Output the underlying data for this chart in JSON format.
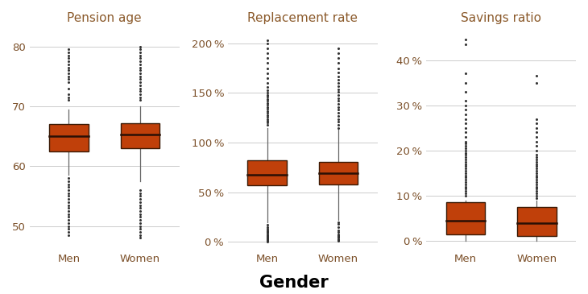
{
  "title": "Gender",
  "subplots": [
    {
      "title": "Pension age",
      "ylabel_ticks": [
        50,
        60,
        70,
        80
      ],
      "ylim": [
        46,
        83
      ],
      "categories": [
        "Men",
        "Women"
      ],
      "box_data": {
        "Men": {
          "q1": 62.5,
          "median": 65.0,
          "q3": 67.0,
          "whisker_low": 58.5,
          "whisker_high": 69.5,
          "flier_low": [
            48.5,
            49.0,
            49.5,
            50.0,
            50.5,
            51.0,
            51.5,
            52.0,
            52.5,
            53.0,
            53.5,
            54.0,
            54.5,
            55.0,
            55.5,
            56.0,
            56.5,
            57.0,
            57.5,
            58.0
          ],
          "flier_high": [
            71.0,
            71.5,
            72.0,
            73.0,
            74.0,
            74.5,
            75.0,
            75.5,
            76.0,
            76.5,
            77.0,
            77.5,
            78.0,
            78.5,
            79.0,
            79.5
          ]
        },
        "Women": {
          "q1": 63.0,
          "median": 65.3,
          "q3": 67.2,
          "whisker_low": 57.5,
          "whisker_high": 70.0,
          "flier_low": [
            56.0,
            55.5,
            55.0,
            54.5,
            54.0,
            53.5,
            53.0,
            52.5,
            52.0,
            51.5,
            51.0,
            50.5,
            50.0,
            49.5,
            49.0,
            48.5,
            48.0
          ],
          "flier_high": [
            71.0,
            71.5,
            72.0,
            72.5,
            73.0,
            73.5,
            74.0,
            74.5,
            75.0,
            75.5,
            76.0,
            76.5,
            77.0,
            77.5,
            78.0,
            78.5,
            79.0,
            79.5,
            80.0
          ]
        }
      },
      "ytick_labels": [
        "50",
        "60",
        "70",
        "80"
      ],
      "is_percent": false
    },
    {
      "title": "Replacement rate",
      "ylim": [
        -8,
        215
      ],
      "ylabel_ticks": [
        0,
        50,
        100,
        150,
        200
      ],
      "categories": [
        "Men",
        "Women"
      ],
      "box_data": {
        "Men": {
          "q1": 57.0,
          "median": 68.0,
          "q3": 82.0,
          "whisker_low": 20.0,
          "whisker_high": 115.0,
          "flier_low": [
            0.5,
            1.0,
            1.5,
            2.0,
            2.5,
            3.0,
            3.5,
            4.0,
            4.5,
            5.0,
            5.5,
            6.0,
            7.0,
            8.0,
            9.0,
            10.0,
            11.0,
            12.0,
            13.0,
            15.0,
            17.0
          ],
          "flier_high": [
            118.0,
            120.0,
            122.0,
            124.0,
            126.0,
            128.0,
            130.0,
            132.0,
            134.0,
            136.0,
            138.0,
            140.0,
            142.0,
            144.0,
            146.0,
            148.0,
            150.0,
            153.0,
            156.0,
            160.0,
            165.0,
            170.0,
            175.0,
            180.0,
            185.0,
            190.0,
            195.0,
            200.0,
            203.0
          ]
        },
        "Women": {
          "q1": 58.0,
          "median": 69.0,
          "q3": 81.0,
          "whisker_low": 22.0,
          "whisker_high": 113.0,
          "flier_low": [
            1.0,
            2.0,
            3.0,
            4.0,
            5.0,
            6.0,
            7.0,
            8.0,
            10.0,
            12.0,
            15.0,
            18.0,
            20.0
          ],
          "flier_high": [
            115.0,
            118.0,
            121.0,
            124.0,
            127.0,
            130.0,
            133.0,
            136.0,
            139.0,
            142.0,
            145.0,
            148.0,
            151.0,
            154.0,
            157.0,
            160.0,
            163.0,
            167.0,
            171.0,
            175.0,
            180.0,
            185.0,
            190.0,
            195.0
          ]
        }
      },
      "ytick_labels": [
        "0 %",
        "50 %",
        "100 %",
        "150 %",
        "200 %"
      ],
      "is_percent": true
    },
    {
      "title": "Savings ratio",
      "ylim": [
        -2,
        47
      ],
      "ylabel_ticks": [
        0,
        10,
        20,
        30,
        40
      ],
      "categories": [
        "Men",
        "Women"
      ],
      "box_data": {
        "Men": {
          "q1": 1.5,
          "median": 4.5,
          "q3": 8.5,
          "whisker_low": 0.0,
          "whisker_high": 9.0,
          "flier_low": [],
          "flier_high": [
            10.0,
            10.5,
            11.0,
            11.5,
            12.0,
            12.5,
            13.0,
            13.5,
            14.0,
            14.5,
            15.0,
            15.5,
            16.0,
            16.5,
            17.0,
            17.5,
            18.0,
            18.5,
            19.0,
            19.5,
            20.0,
            20.5,
            21.0,
            21.5,
            22.0,
            23.0,
            24.0,
            25.0,
            26.0,
            27.0,
            28.0,
            29.0,
            30.0,
            31.0,
            33.0,
            35.0,
            37.0,
            43.5,
            44.5
          ]
        },
        "Women": {
          "q1": 1.0,
          "median": 4.0,
          "q3": 7.5,
          "whisker_low": 0.0,
          "whisker_high": 9.0,
          "flier_low": [],
          "flier_high": [
            9.5,
            10.0,
            10.5,
            11.0,
            11.5,
            12.0,
            12.5,
            13.0,
            13.5,
            14.0,
            14.5,
            15.0,
            15.5,
            16.0,
            16.5,
            17.0,
            17.5,
            18.0,
            18.5,
            19.0,
            20.0,
            21.0,
            22.0,
            23.0,
            24.0,
            25.0,
            26.0,
            27.0,
            35.0,
            36.5
          ]
        }
      },
      "ytick_labels": [
        "0 %",
        "10 %",
        "20 %",
        "30 %",
        "40 %"
      ],
      "is_percent": true
    }
  ],
  "box_color": "#C0400A",
  "box_edge_color": "#3A1A05",
  "median_color": "#2A1005",
  "whisker_color": "#666666",
  "flier_color": "#333333",
  "title_color": "#8B5A2B",
  "tick_label_color": "#7B4F28",
  "background_color": "#FFFFFF",
  "grid_color": "#CCCCCC",
  "title_fontsize": 11,
  "gender_label_fontsize": 15,
  "tick_fontsize": 9.5,
  "box_width": 0.55
}
